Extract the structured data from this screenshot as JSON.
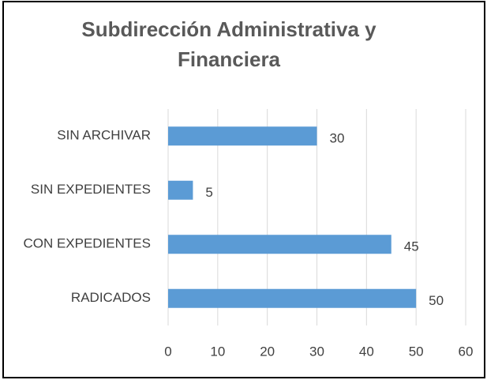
{
  "chart_data": {
    "type": "bar",
    "orientation": "horizontal",
    "title": "Subdirección Administrativa y Financiera",
    "categories": [
      "SIN ARCHIVAR",
      "SIN EXPEDIENTES",
      "CON EXPEDIENTES",
      "RADICADOS"
    ],
    "values": [
      30,
      5,
      45,
      50
    ],
    "color": "#5b9bd5",
    "xlim": [
      0,
      60
    ],
    "xticks": [
      0,
      10,
      20,
      30,
      40,
      50,
      60
    ],
    "grid": true
  }
}
